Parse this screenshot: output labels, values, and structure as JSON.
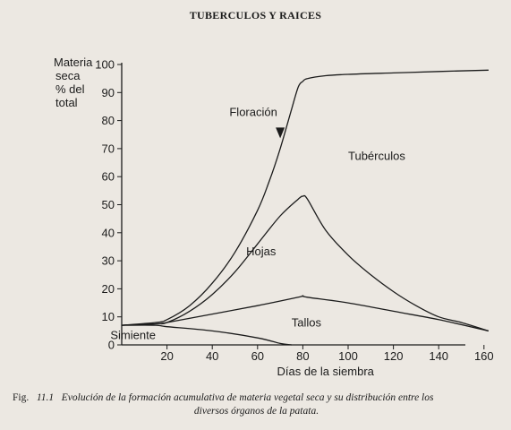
{
  "header": {
    "title": "TUBERCULOS Y RAICES"
  },
  "chart_data": {
    "type": "line",
    "ylabel": [
      "Materia",
      "seca",
      "% del",
      "total"
    ],
    "xlabel": "Días de la siembra",
    "xlim": [
      0,
      165
    ],
    "ylim": [
      0,
      100
    ],
    "xticks": [
      20,
      40,
      60,
      80,
      100,
      120,
      140,
      160
    ],
    "yticks": [
      0,
      10,
      20,
      30,
      40,
      50,
      60,
      70,
      80,
      90,
      100
    ],
    "grid": false,
    "legend": "none",
    "series": [
      {
        "name": "Tubérculos",
        "x": [
          0,
          15,
          20,
          30,
          40,
          50,
          60,
          65,
          70,
          75,
          78,
          80,
          82,
          90,
          100,
          120,
          140,
          162
        ],
        "y": [
          7,
          8,
          9,
          14,
          22,
          33,
          48,
          58,
          70,
          84,
          92,
          94,
          95,
          96,
          96.5,
          97,
          97.5,
          98
        ]
      },
      {
        "name": "Hojas",
        "x": [
          0,
          15,
          20,
          30,
          40,
          50,
          60,
          70,
          78,
          80,
          82,
          90,
          100,
          110,
          120,
          130,
          140,
          150,
          162
        ],
        "y": [
          7,
          7.5,
          8,
          12,
          18,
          26,
          36,
          46,
          52,
          53,
          52,
          41,
          32,
          25,
          19,
          14,
          10,
          8,
          5
        ]
      },
      {
        "name": "Tallos",
        "x": [
          0,
          15,
          20,
          40,
          60,
          78,
          80,
          82,
          100,
          120,
          140,
          162
        ],
        "y": [
          7,
          7.5,
          8,
          11,
          14,
          17,
          17.5,
          17,
          15,
          12,
          9,
          5
        ]
      },
      {
        "name": "Simiente",
        "x": [
          0,
          15,
          20,
          40,
          60,
          70,
          75
        ],
        "y": [
          7,
          7,
          6.5,
          5,
          2.5,
          0.5,
          0
        ]
      }
    ],
    "annotations": [
      {
        "text": "Floración",
        "x": 70,
        "arrow_to_y": 82
      }
    ]
  },
  "caption": {
    "fig_label": "Fig.",
    "fig_number": "11.1",
    "text_line1": "Evolución de la formación acumulativa de materia vegetal seca y su distribución entre los",
    "text_line2": "diversos órganos de la patata."
  }
}
